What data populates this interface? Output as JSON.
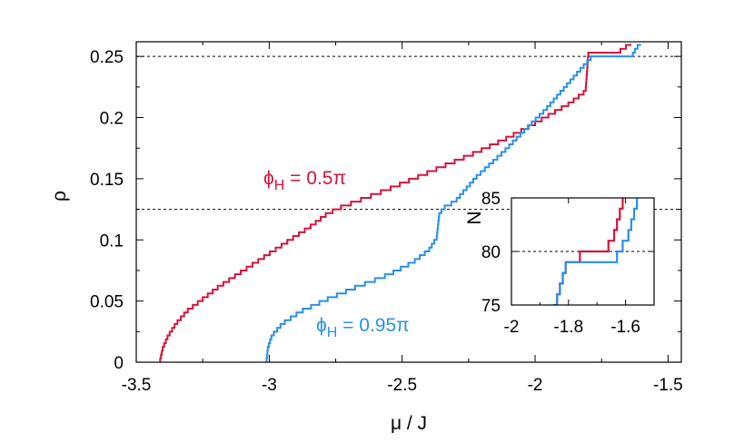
{
  "chart_data": {
    "type": "line",
    "xlabel": "μ / J",
    "ylabel": "ρ",
    "xlim": [
      -3.5,
      -1.45
    ],
    "ylim": [
      0,
      0.262
    ],
    "xticks": [
      "-3.5",
      "-3",
      "-2.5",
      "-2",
      "-1.5"
    ],
    "xtick_values": [
      -3.5,
      -3,
      -2.5,
      -2,
      -1.5
    ],
    "yticks": [
      "0",
      "0.05",
      "0.1",
      "0.15",
      "0.2",
      "0.25"
    ],
    "ytick_values": [
      0,
      0.05,
      0.1,
      0.15,
      0.2,
      0.25
    ],
    "reference_lines": [
      0.125,
      0.25
    ],
    "staircase_step": 0.003125,
    "series": [
      {
        "name": "ϕH = 0.5π",
        "label_main": "ϕ",
        "label_sub": "H",
        "label_rest": " = 0.5π",
        "color": "#d2143c",
        "points": [
          [
            -3.41,
            0.0
          ],
          [
            -3.4,
            0.01
          ],
          [
            -3.38,
            0.02
          ],
          [
            -3.35,
            0.03
          ],
          [
            -3.31,
            0.04
          ],
          [
            -3.25,
            0.05
          ],
          [
            -3.19,
            0.06
          ],
          [
            -3.12,
            0.07
          ],
          [
            -3.05,
            0.08
          ],
          [
            -2.98,
            0.09
          ],
          [
            -2.91,
            0.1
          ],
          [
            -2.84,
            0.11
          ],
          [
            -2.78,
            0.12
          ],
          [
            -2.73,
            0.125
          ],
          [
            -2.67,
            0.13
          ],
          [
            -2.55,
            0.14
          ],
          [
            -2.44,
            0.15
          ],
          [
            -2.33,
            0.16
          ],
          [
            -2.22,
            0.17
          ],
          [
            -2.12,
            0.18
          ],
          [
            -2.03,
            0.19
          ],
          [
            -1.95,
            0.2
          ],
          [
            -1.87,
            0.21
          ],
          [
            -1.81,
            0.22
          ],
          [
            -1.8,
            0.25
          ],
          [
            -1.68,
            0.253
          ],
          [
            -1.62,
            0.262
          ]
        ]
      },
      {
        "name": "ϕH = 0.95π",
        "label_main": "ϕ",
        "label_sub": "H",
        "label_rest": " = 0.95π",
        "color": "#2a8fe8",
        "points": [
          [
            -3.01,
            0.0
          ],
          [
            -3.005,
            0.01
          ],
          [
            -2.99,
            0.02
          ],
          [
            -2.95,
            0.03
          ],
          [
            -2.88,
            0.04
          ],
          [
            -2.78,
            0.05
          ],
          [
            -2.67,
            0.06
          ],
          [
            -2.55,
            0.07
          ],
          [
            -2.46,
            0.08
          ],
          [
            -2.4,
            0.09
          ],
          [
            -2.37,
            0.1
          ],
          [
            -2.36,
            0.12
          ],
          [
            -2.34,
            0.125
          ],
          [
            -2.3,
            0.13
          ],
          [
            -2.22,
            0.15
          ],
          [
            -2.12,
            0.17
          ],
          [
            -2.03,
            0.19
          ],
          [
            -1.96,
            0.205
          ],
          [
            -1.88,
            0.225
          ],
          [
            -1.82,
            0.24
          ],
          [
            -1.79,
            0.247
          ],
          [
            -1.64,
            0.247
          ],
          [
            -1.62,
            0.255
          ],
          [
            -1.59,
            0.262
          ]
        ]
      }
    ],
    "inset": {
      "xlim": [
        -2.0,
        -1.5
      ],
      "ylim": [
        75,
        85
      ],
      "ylabel": "N",
      "xticks": [
        "-2",
        "-1.8",
        "-1.6"
      ],
      "xtick_values": [
        -2.0,
        -1.8,
        -1.6
      ],
      "yticks": [
        "75",
        "80",
        "85"
      ],
      "ytick_values": [
        75,
        80,
        85
      ],
      "reference_line": 80,
      "series": [
        {
          "name": "ϕH = 0.5π",
          "color": "#d2143c",
          "points": [
            [
              -1.85,
              75
            ],
            [
              -1.84,
              76
            ],
            [
              -1.83,
              77
            ],
            [
              -1.82,
              78
            ],
            [
              -1.81,
              79
            ],
            [
              -1.76,
              80
            ],
            [
              -1.66,
              81
            ],
            [
              -1.64,
              82
            ],
            [
              -1.63,
              83
            ],
            [
              -1.62,
              84
            ],
            [
              -1.61,
              85
            ]
          ]
        },
        {
          "name": "ϕH = 0.95π",
          "color": "#2a8fe8",
          "points": [
            [
              -1.85,
              75
            ],
            [
              -1.84,
              76
            ],
            [
              -1.83,
              77
            ],
            [
              -1.82,
              78
            ],
            [
              -1.81,
              79
            ],
            [
              -1.63,
              80
            ],
            [
              -1.61,
              81
            ],
            [
              -1.59,
              82
            ],
            [
              -1.58,
              83
            ],
            [
              -1.57,
              84
            ],
            [
              -1.56,
              85
            ]
          ]
        }
      ]
    }
  }
}
